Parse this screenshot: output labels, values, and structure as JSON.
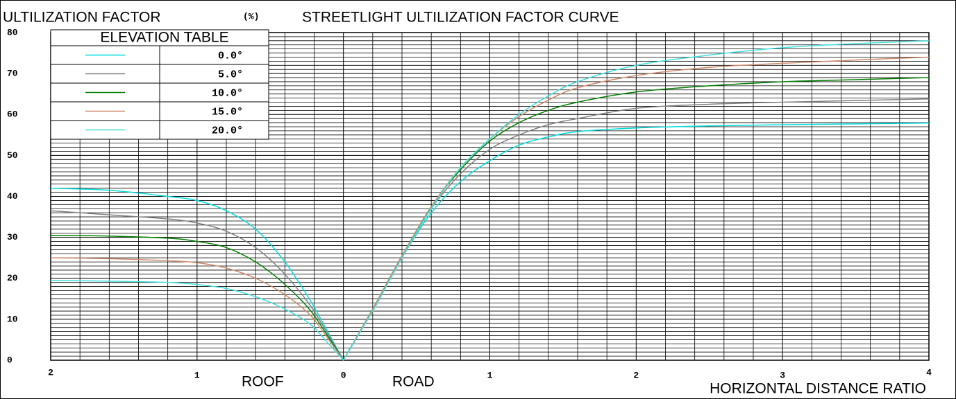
{
  "chart_data": {
    "type": "line",
    "title": "STREETLIGHT ULTILIZATION FACTOR CURVE",
    "y_label": "ULTILIZATION FACTOR",
    "y_unit": "(%)",
    "x_label": "HORIZONTAL DISTANCE RATIO",
    "roof_label": "ROOF",
    "road_label": "ROAD",
    "legend_title": "ELEVATION TABLE",
    "legend_position": "upper left",
    "grid": true,
    "x": [
      -2,
      -1.6,
      -1.2,
      -1,
      -0.8,
      -0.6,
      -0.4,
      -0.2,
      0,
      0.2,
      0.4,
      0.6,
      0.8,
      1,
      1.2,
      1.4,
      1.6,
      2,
      2.5,
      3,
      3.5,
      4
    ],
    "xlim": [
      -2,
      4
    ],
    "ylim": [
      0,
      80
    ],
    "xticks": [
      {
        "value": -2,
        "label": "2"
      },
      {
        "value": -1,
        "label": "1"
      },
      0,
      1,
      2,
      3,
      4
    ],
    "yticks": [
      0,
      10,
      20,
      30,
      40,
      50,
      60,
      70,
      80
    ],
    "x_minor_ticks": [
      -1.8,
      -1.6,
      -1.4,
      -1.2,
      -0.8,
      -0.6,
      -0.4,
      -0.2,
      0.2,
      0.4,
      0.6,
      0.8,
      1.2,
      1.4,
      1.6,
      1.8,
      2.2,
      2.4,
      2.6,
      2.8,
      3.2,
      3.4,
      3.6,
      3.8
    ],
    "y_minor_ticks": [
      1,
      2,
      3,
      4,
      5,
      6,
      7,
      8,
      9,
      11,
      12,
      13,
      14,
      15,
      16,
      17,
      18,
      19,
      21,
      22,
      23,
      24,
      25,
      26,
      27,
      28,
      29,
      31,
      32,
      33,
      34,
      35,
      36,
      37,
      38,
      39,
      41,
      42,
      43,
      44,
      45,
      46,
      47,
      48,
      49,
      51,
      52,
      53,
      54,
      55,
      56,
      57,
      58,
      59,
      61,
      62,
      63,
      64,
      65,
      66,
      67,
      68,
      69,
      71,
      72,
      73,
      74,
      75,
      76,
      77,
      78,
      79
    ],
    "series": [
      {
        "name": "0.0°",
        "color": "#00dede",
        "values": [
          42,
          41.5,
          40,
          39,
          36.5,
          32,
          24,
          13,
          0,
          12,
          25,
          36,
          43.6,
          48.7,
          52.5,
          54.5,
          55.8,
          56.7,
          57.2,
          57.5,
          57.7,
          57.9
        ]
      },
      {
        "name": "5.0°",
        "color": "#808080",
        "values": [
          36.5,
          35.5,
          34.5,
          33.5,
          31.5,
          27.5,
          21,
          12,
          0,
          12.5,
          25,
          37,
          45.5,
          51.5,
          55,
          57.5,
          59,
          61.5,
          62.5,
          63,
          63.4,
          63.8
        ]
      },
      {
        "name": "10.0°",
        "color": "#008000",
        "values": [
          30.5,
          30.3,
          29.8,
          29,
          27.5,
          24,
          18.5,
          11,
          0,
          12.5,
          25.5,
          37.5,
          46.5,
          53.5,
          58,
          61,
          63,
          65.5,
          67,
          68,
          68.5,
          69
        ]
      },
      {
        "name": "15.0°",
        "color": "#d08a6a",
        "values": [
          25,
          24.8,
          24.3,
          23.8,
          22.5,
          20,
          16,
          10,
          0,
          12.5,
          25.5,
          37.5,
          47,
          54,
          59.5,
          63.5,
          66.5,
          69.5,
          71.5,
          72.5,
          73.3,
          74
        ]
      },
      {
        "name": "20.0°",
        "color": "#40e0e0",
        "values": [
          19.5,
          19.3,
          19,
          18.5,
          17.5,
          15.5,
          12.5,
          8,
          0,
          12,
          25,
          37,
          47,
          54,
          60,
          64.5,
          68,
          72,
          74.5,
          76.3,
          77.3,
          78
        ]
      }
    ]
  }
}
